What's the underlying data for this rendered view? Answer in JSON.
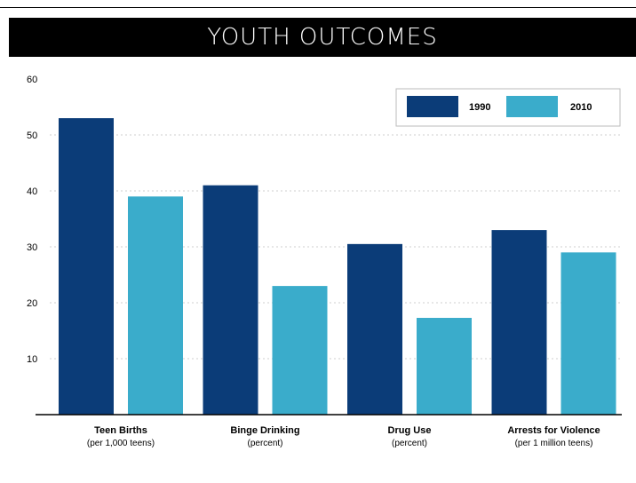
{
  "chart_data": {
    "type": "bar",
    "title": "YOUTH OUTCOMES",
    "categories": [
      {
        "label": "Teen Births",
        "sublabel": "(per 1,000 teens)"
      },
      {
        "label": "Binge Drinking",
        "sublabel": "(percent)"
      },
      {
        "label": "Drug Use",
        "sublabel": "(percent)"
      },
      {
        "label": "Arrests for Violence",
        "sublabel": "(per 1 million teens)"
      }
    ],
    "series": [
      {
        "name": "1990",
        "color": "#0b3c78",
        "values": [
          53,
          41,
          30.5,
          33
        ]
      },
      {
        "name": "2010",
        "color": "#3aaccb",
        "values": [
          39,
          23,
          17.3,
          29
        ]
      }
    ],
    "y_ticks": [
      10,
      20,
      30,
      40,
      50,
      60
    ],
    "ylim": [
      0,
      60
    ],
    "grid": "dotted horizontal",
    "legend_position": "top-right"
  }
}
